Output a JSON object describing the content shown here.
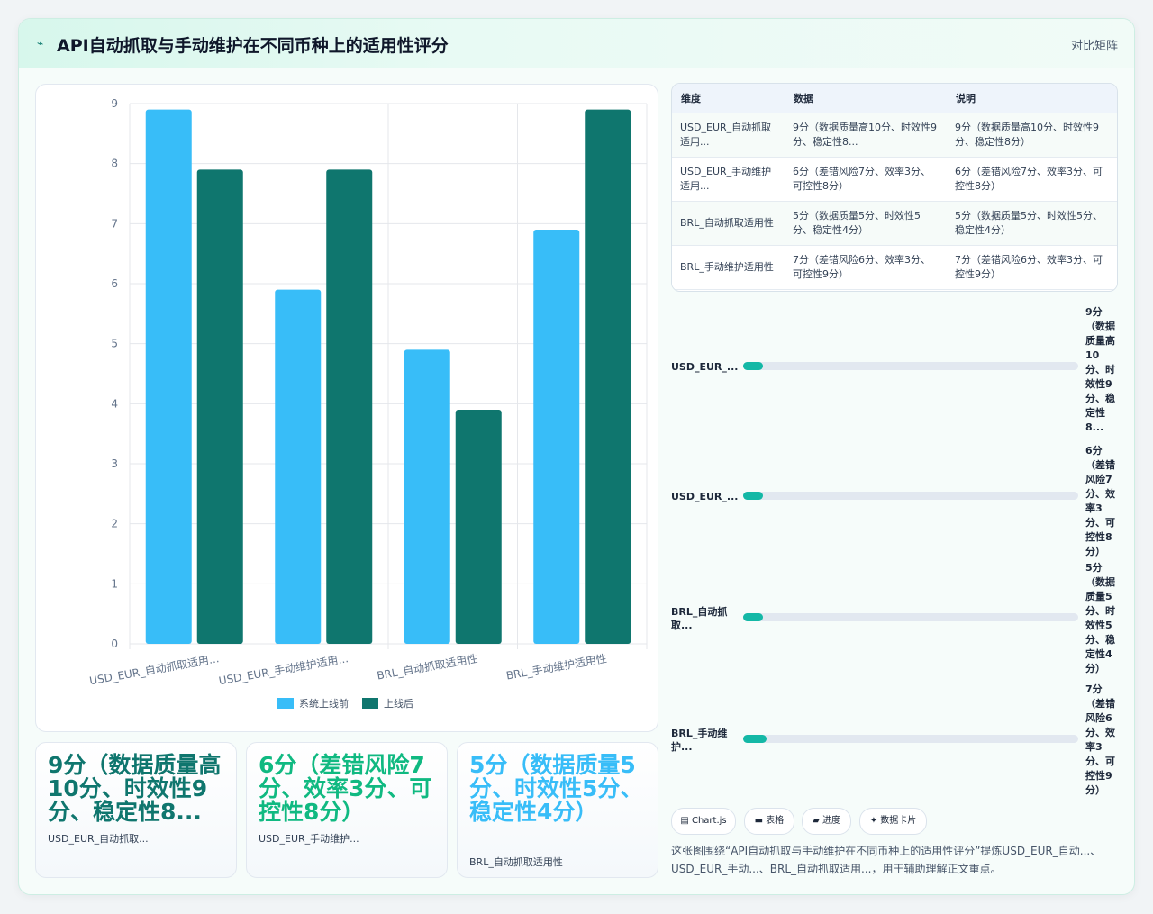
{
  "header": {
    "icon": "⌁",
    "title": "API自动抓取与手动维护在不同币种上的适用性评分",
    "action": "对比矩阵"
  },
  "colors": {
    "before": "#38bdf8",
    "after": "#0f766e",
    "accent": "#14b8a6",
    "stat1": "#0f766e",
    "stat2": "#10b981",
    "stat3": "#38bdf8"
  },
  "chart_data": {
    "type": "bar",
    "categories": [
      "USD_EUR_自动抓取适用...",
      "USD_EUR_手动维护适用...",
      "BRL_自动抓取适用性",
      "BRL_手动维护适用性"
    ],
    "series": [
      {
        "name": "系统上线前",
        "values": [
          8.9,
          5.9,
          4.9,
          6.9
        ]
      },
      {
        "name": "上线后",
        "values": [
          7.9,
          7.9,
          3.9,
          8.9
        ]
      }
    ],
    "ylim": [
      0,
      9
    ],
    "yticks": [
      "0",
      "1",
      "2",
      "3",
      "4",
      "5",
      "6",
      "7",
      "8",
      "9"
    ],
    "grid": true,
    "legend": "bottom"
  },
  "stats": [
    {
      "value": "9分（数据质量高10分、时效性9分、稳定性8...",
      "label": "USD_EUR_自动抓取..."
    },
    {
      "value": "6分（差错风险7分、效率3分、可控性8分）",
      "label": "USD_EUR_手动维护..."
    },
    {
      "value": "5分（数据质量5分、时效性5分、稳定性4分）",
      "label": "BRL_自动抓取适用性"
    }
  ],
  "table": {
    "headers": [
      "维度",
      "数据",
      "说明"
    ],
    "rows": [
      [
        "USD_EUR_自动抓取适用...",
        "9分（数据质量高10分、时效性9分、稳定性8...",
        "9分（数据质量高10分、时效性9分、稳定性8分）"
      ],
      [
        "USD_EUR_手动维护适用...",
        "6分（差错风险7分、效率3分、可控性8分）",
        "6分（差错风险7分、效率3分、可控性8分）"
      ],
      [
        "BRL_自动抓取适用性",
        "5分（数据质量5分、时效性5分、稳定性4分）",
        "5分（数据质量5分、时效性5分、稳定性4分）"
      ],
      [
        "BRL_手动维护适用性",
        "7分（差错风险6分、效率3分、可控性9分）",
        "7分（差错风险6分、效率3分、可控性9分）"
      ]
    ]
  },
  "progress": [
    {
      "label": "USD_EUR_...",
      "value": "9分（数据质量高10分、时效性9分、稳定性8...",
      "fraction": 0.06
    },
    {
      "label": "USD_EUR_...",
      "value": "6分（差错风险7分、效率3分、可控性8分）",
      "fraction": 0.06
    },
    {
      "label": "BRL_自动抓取...",
      "value": "5分（数据质量5分、时效性5分、稳定性4分）",
      "fraction": 0.06
    },
    {
      "label": "BRL_手动维护...",
      "value": "7分（差错风险6分、效率3分、可控性9分）",
      "fraction": 0.07
    }
  ],
  "chips": [
    "▤ Chart.js",
    "▬ 表格",
    "▰ 进度",
    "✦ 数据卡片"
  ],
  "caption": "这张图围绕“API自动抓取与手动维护在不同币种上的适用性评分”提炼USD_EUR_自动...、USD_EUR_手动...、BRL_自动抓取适用...，用于辅助理解正文重点。"
}
